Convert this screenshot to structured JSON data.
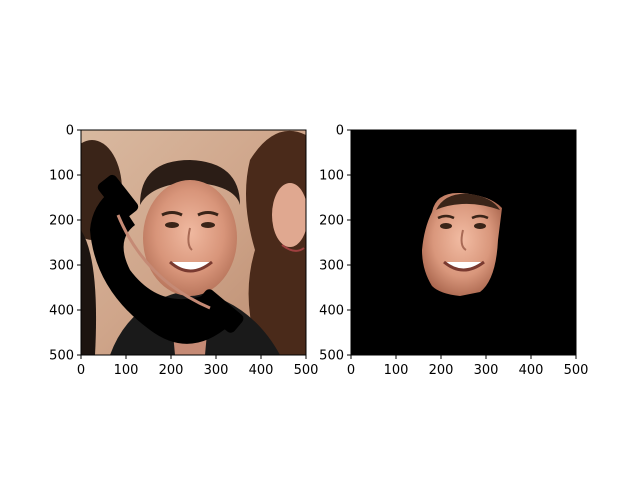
{
  "figure": {
    "panels": [
      {
        "name": "original-image-panel",
        "image_description_icon": "face-photo-with-phone-occlusion",
        "xlim": [
          0,
          500
        ],
        "ylim": [
          500,
          0
        ],
        "x_ticks": [
          0,
          100,
          200,
          300,
          400,
          500
        ],
        "y_ticks": [
          0,
          100,
          200,
          300,
          400,
          500
        ]
      },
      {
        "name": "segmented-face-panel",
        "image_description_icon": "segmented-face-mask",
        "xlim": [
          0,
          500
        ],
        "ylim": [
          500,
          0
        ],
        "x_ticks": [
          0,
          100,
          200,
          300,
          400,
          500
        ],
        "y_ticks": [
          0,
          100,
          200,
          300,
          400,
          500
        ]
      }
    ],
    "colors": {
      "axis": "#000000",
      "mask_background": "#000000",
      "page_background": "#ffffff"
    }
  }
}
